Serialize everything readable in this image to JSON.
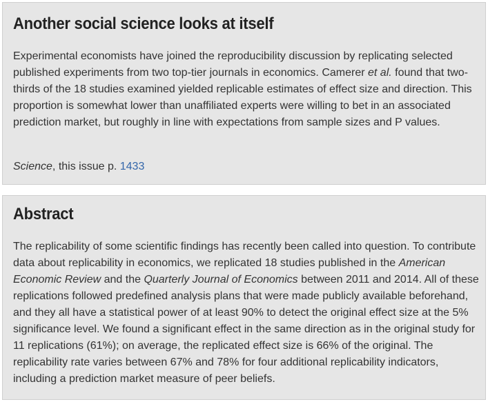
{
  "summary": {
    "title": "Another social science looks at itself",
    "text_1": "Experimental economists have joined the reproducibility discussion by replicating selected published experiments from two top-tier journals in economics. Camerer ",
    "text_italic": "et al.",
    "text_2": " found that two-thirds of the 18 studies examined yielded replicable estimates of effect size and direction. This proportion is somewhat lower than unaffiliated experts were willing to bet in an associated prediction market, but roughly in line with expectations from sample sizes and P values.",
    "citation_journal": "Science",
    "citation_text": ", this issue p. ",
    "citation_page": "1433"
  },
  "abstract": {
    "title": "Abstract",
    "text_1": "The replicability of some scientific findings has recently been called into question. To contribute data about replicability in economics, we replicated 18 studies published in the ",
    "journal_1": "American Economic Review",
    "text_2": " and the ",
    "journal_2": "Quarterly Journal of Economics",
    "text_3": " between 2011 and 2014. All of these replications followed predefined analysis plans that were made publicly available beforehand, and they all have a statistical power of at least 90% to detect the original effect size at the 5% significance level. We found a significant effect in the same direction as in the original study for 11 replications (61%); on average, the replicated effect size is 66% of the original. The replicability rate varies between 67% and 78% for four additional replicability indicators, including a prediction market measure of peer beliefs."
  },
  "colors": {
    "box_background": "#e6e6e6",
    "text": "#333333",
    "link": "#3366aa"
  }
}
